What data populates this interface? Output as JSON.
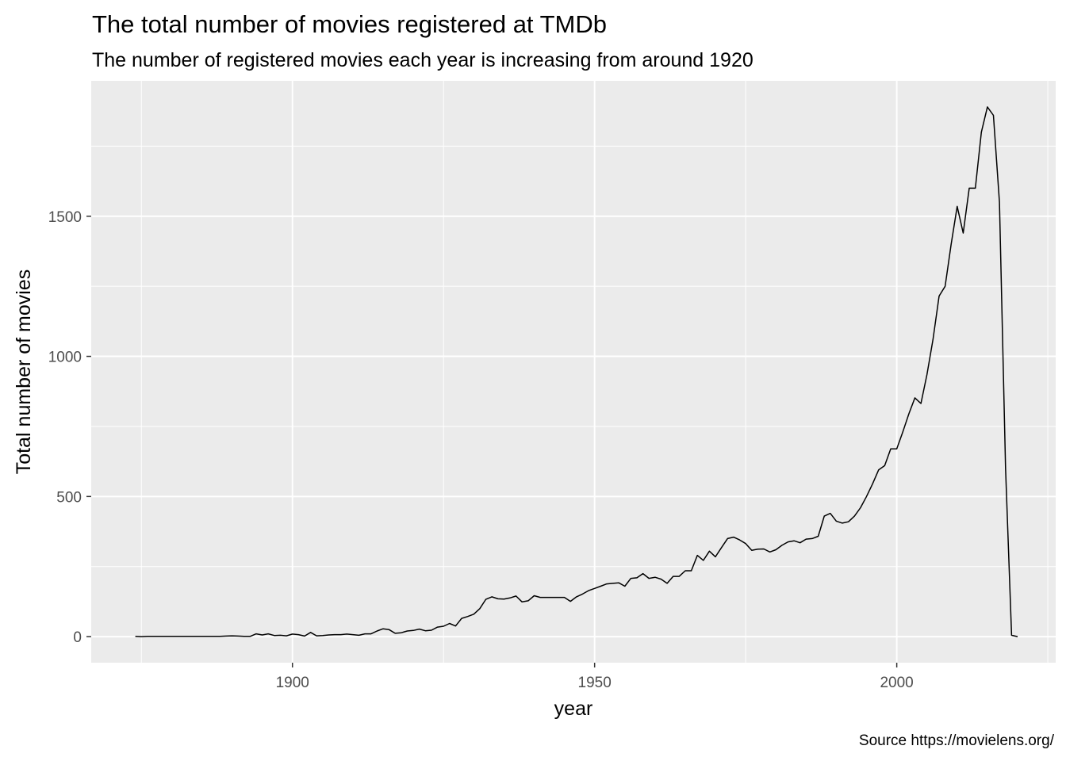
{
  "chart_data": {
    "type": "line",
    "title": "The total number of movies registered at TMDb",
    "subtitle": "The number of registered movies each year is increasing from around 1920",
    "xlabel": "year",
    "ylabel": "Total number of movies",
    "caption": "Source https://movielens.org/",
    "xlim": [
      1866.7,
      2026.3
    ],
    "ylim": [
      -93,
      1983
    ],
    "x_ticks": [
      1900,
      1950,
      2000
    ],
    "y_ticks": [
      0,
      500,
      1000,
      1500
    ],
    "grid": true,
    "legend": "none",
    "line_color": "#000000",
    "panel_color": "#ebebeb",
    "x": [
      1874,
      1875,
      1876,
      1877,
      1878,
      1879,
      1880,
      1881,
      1882,
      1883,
      1884,
      1885,
      1886,
      1887,
      1888,
      1889,
      1890,
      1891,
      1892,
      1893,
      1894,
      1895,
      1896,
      1897,
      1898,
      1899,
      1900,
      1901,
      1902,
      1903,
      1904,
      1905,
      1906,
      1907,
      1908,
      1909,
      1910,
      1911,
      1912,
      1913,
      1914,
      1915,
      1916,
      1917,
      1918,
      1919,
      1920,
      1921,
      1922,
      1923,
      1924,
      1925,
      1926,
      1927,
      1928,
      1929,
      1930,
      1931,
      1932,
      1933,
      1934,
      1935,
      1936,
      1937,
      1938,
      1939,
      1940,
      1941,
      1942,
      1943,
      1944,
      1945,
      1946,
      1947,
      1948,
      1949,
      1950,
      1951,
      1952,
      1953,
      1954,
      1955,
      1956,
      1957,
      1958,
      1959,
      1960,
      1961,
      1962,
      1963,
      1964,
      1965,
      1966,
      1967,
      1968,
      1969,
      1970,
      1971,
      1972,
      1973,
      1974,
      1975,
      1976,
      1977,
      1978,
      1979,
      1980,
      1981,
      1982,
      1983,
      1984,
      1985,
      1986,
      1987,
      1988,
      1989,
      1990,
      1991,
      1992,
      1993,
      1994,
      1995,
      1996,
      1997,
      1998,
      1999,
      2000,
      2001,
      2002,
      2003,
      2004,
      2005,
      2006,
      2007,
      2008,
      2009,
      2010,
      2011,
      2012,
      2013,
      2014,
      2015,
      2016,
      2017,
      2018,
      2019,
      2020
    ],
    "y": [
      1,
      0,
      1,
      1,
      1,
      1,
      1,
      1,
      1,
      1,
      1,
      1,
      1,
      1,
      1,
      2,
      3,
      2,
      1,
      1,
      10,
      6,
      10,
      4,
      5,
      3,
      9,
      7,
      2,
      15,
      3,
      4,
      6,
      7,
      7,
      9,
      7,
      5,
      10,
      10,
      20,
      28,
      25,
      12,
      14,
      20,
      22,
      27,
      21,
      23,
      34,
      37,
      47,
      38,
      65,
      72,
      80,
      100,
      133,
      142,
      135,
      134,
      138,
      145,
      124,
      128,
      146,
      140,
      140,
      140,
      140,
      140,
      126,
      142,
      152,
      164,
      172,
      180,
      188,
      190,
      192,
      180,
      208,
      210,
      225,
      208,
      212,
      205,
      190,
      215,
      215,
      235,
      235,
      290,
      272,
      305,
      285,
      318,
      350,
      355,
      345,
      332,
      308,
      312,
      313,
      302,
      310,
      326,
      338,
      342,
      335,
      348,
      350,
      358,
      430,
      440,
      412,
      405,
      410,
      430,
      460,
      500,
      545,
      595,
      610,
      670,
      670,
      730,
      795,
      852,
      832,
      935,
      1060,
      1215,
      1250,
      1400,
      1535,
      1440,
      1600,
      1600,
      1800,
      1890,
      1860,
      1550,
      600,
      5,
      0
    ]
  }
}
